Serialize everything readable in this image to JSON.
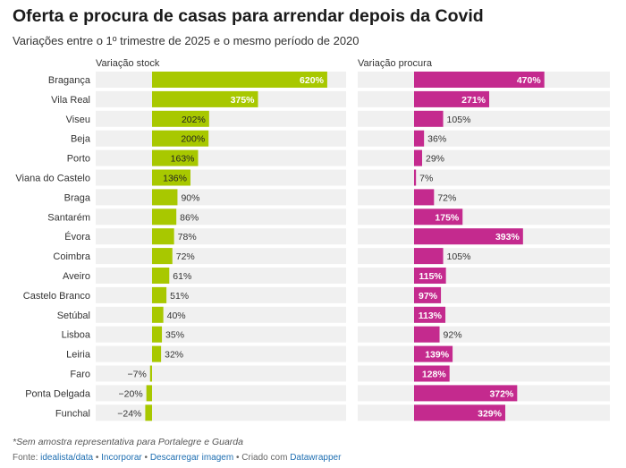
{
  "title": "Oferta e procura de casas para arrendar depois da Covid",
  "subtitle": "Variações entre o 1º trimestre de 2025 e o mesmo período de 2020",
  "note": "*Sem amostra representativa para Portalegre e Guarda",
  "footer": {
    "fonte": "Fonte:",
    "source_link": "idealista/data",
    "sep": "•",
    "incorporar": "Incorporar",
    "descarregar": "Descarregar imagem",
    "criado": "Criado com",
    "datawrapper": "Datawrapper"
  },
  "colors": {
    "stock": "#a8c800",
    "procura": "#c42a8e",
    "row_bg": "#f0f0f0"
  },
  "chart_data": {
    "type": "bar",
    "categories": [
      "Bragança",
      "Vila Real",
      "Viseu",
      "Beja",
      "Porto",
      "Viana do Castelo",
      "Braga",
      "Santarém",
      "Évora",
      "Coimbra",
      "Aveiro",
      "Castelo Branco",
      "Setúbal",
      "Lisboa",
      "Leiria",
      "Faro",
      "Ponta Delgada",
      "Funchal"
    ],
    "series": [
      {
        "name": "Variação stock",
        "values": [
          620,
          375,
          202,
          200,
          163,
          136,
          90,
          86,
          78,
          72,
          61,
          51,
          40,
          35,
          32,
          -7,
          -20,
          -24
        ],
        "labels": [
          "620%",
          "375%",
          "202%",
          "200%",
          "163%",
          "136%",
          "90%",
          "86%",
          "78%",
          "72%",
          "61%",
          "51%",
          "40%",
          "35%",
          "32%",
          "−7%",
          "−20%",
          "−24%"
        ]
      },
      {
        "name": "Variação procura",
        "values": [
          470,
          271,
          105,
          36,
          29,
          7,
          72,
          175,
          393,
          105,
          115,
          97,
          113,
          92,
          139,
          128,
          372,
          329
        ],
        "labels": [
          "470%",
          "271%",
          "105%",
          "36%",
          "29%",
          "7%",
          "72%",
          "175%",
          "393%",
          "105%",
          "115%",
          "97%",
          "113%",
          "92%",
          "139%",
          "128%",
          "372%",
          "329%"
        ]
      }
    ]
  }
}
